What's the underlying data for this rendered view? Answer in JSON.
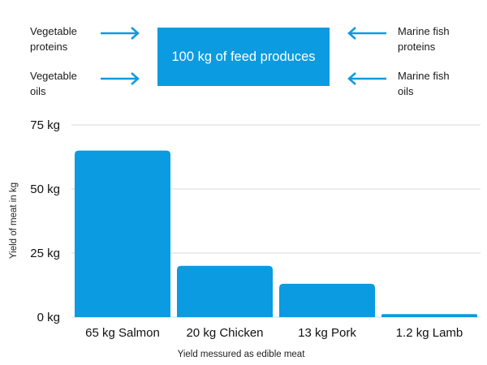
{
  "header": {
    "center_text": "100 kg of feed produces",
    "inputs_left": [
      "Vegetable\nproteins",
      "Vegetable\noils"
    ],
    "inputs_right": [
      "Marine fish\nproteins",
      "Marine fish\noils"
    ],
    "box_color": "#0b9be0",
    "arrow_color": "#0b9be0"
  },
  "chart_data": {
    "type": "bar",
    "categories": [
      "65 kg Salmon",
      "20 kg Chicken",
      "13 kg Pork",
      "1.2 kg Lamb"
    ],
    "values": [
      65,
      20,
      13,
      1.2
    ],
    "title": "",
    "xlabel": "Yield messured as edible meat",
    "ylabel": "Yield of meat in kg",
    "ylim": [
      0,
      75
    ],
    "yticks": [
      0,
      25,
      50,
      75
    ],
    "ytick_labels": [
      "0 kg",
      "25 kg",
      "50 kg",
      "75 kg"
    ],
    "grid": true,
    "bar_color": "#0b9be0"
  }
}
